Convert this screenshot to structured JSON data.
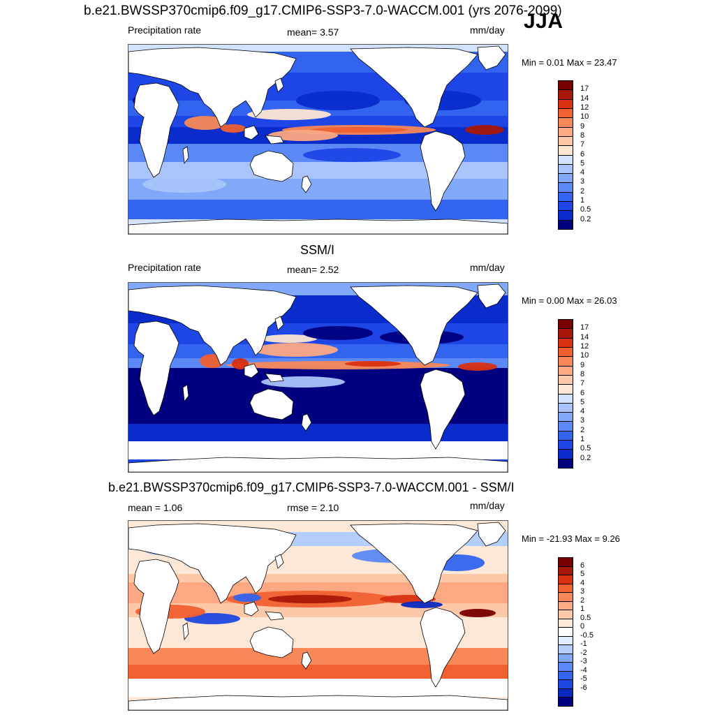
{
  "header": {
    "title": "b.e21.BWSSP370cmip6.f09_g17.CMIP6-SSP3-7.0-WACCM.001 (yrs 2076-2099)",
    "season": "JJA"
  },
  "panels": [
    {
      "title": "",
      "left_label": "Precipitation rate",
      "center_label": "mean=   3.57",
      "right_label": "mm/day",
      "minmax": "Min =   0.01 Max =  23.47",
      "colorbar_labels": [
        "17",
        "14",
        "12",
        "10",
        "9",
        "8",
        "7",
        "6",
        "5",
        "4",
        "3",
        "2",
        "1",
        "0.5",
        "0.2"
      ]
    },
    {
      "title": "SSM/I",
      "left_label": "Precipitation rate",
      "center_label": "mean=   2.52",
      "right_label": "mm/day",
      "minmax": "Min =   0.00 Max =  26.03",
      "colorbar_labels": [
        "17",
        "14",
        "12",
        "10",
        "9",
        "8",
        "7",
        "6",
        "5",
        "4",
        "3",
        "2",
        "1",
        "0.5",
        "0.2"
      ]
    },
    {
      "title": "b.e21.BWSSP370cmip6.f09_g17.CMIP6-SSP3-7.0-WACCM.001 - SSM/I",
      "left_label": "mean =   1.06",
      "center_label": "rmse =   2.10",
      "right_label": "mm/day",
      "minmax": "Min = -21.93 Max =   9.26",
      "colorbar_labels": [
        "6",
        "5",
        "4",
        "3",
        "2",
        "1",
        "0.5",
        "0",
        "-0.5",
        "-1",
        "-2",
        "-3",
        "-4",
        "-5",
        "-6"
      ]
    }
  ],
  "colors": {
    "precip_scale": [
      "#000080",
      "#0a2ccc",
      "#1e46e6",
      "#3264f0",
      "#5a88f5",
      "#82a8fa",
      "#a8c4fb",
      "#d2e2fc",
      "#fce6d2",
      "#fcc8a8",
      "#fca882",
      "#f88858",
      "#f06030",
      "#d83010",
      "#a81808",
      "#780000"
    ],
    "diff_scale": [
      "#000080",
      "#0a28c0",
      "#1e46e0",
      "#3264f0",
      "#5a88f5",
      "#82a8fa",
      "#b4cefc",
      "#e0ecfe",
      "#ffffff",
      "#fde8d8",
      "#fcc8a8",
      "#fca882",
      "#f88858",
      "#f06030",
      "#d83010",
      "#a81808",
      "#780000"
    ]
  }
}
